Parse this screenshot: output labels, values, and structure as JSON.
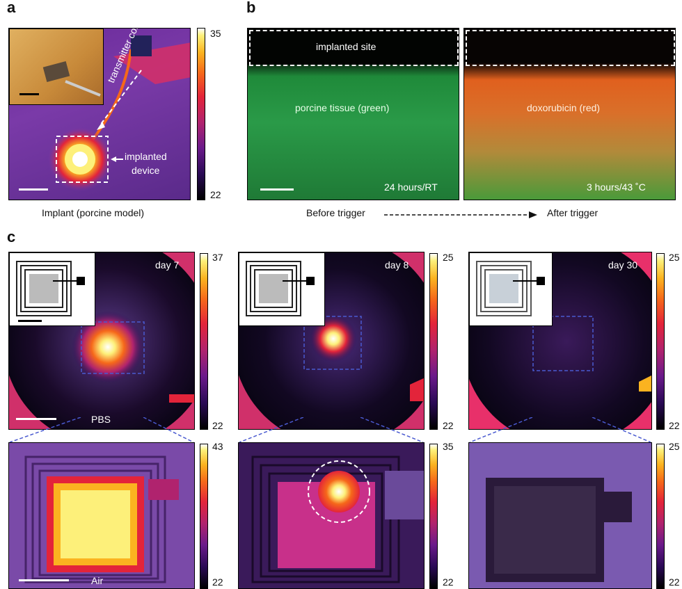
{
  "panel_a": {
    "letter": "a",
    "labels": {
      "transmitter": "transmitter coil",
      "implanted_1": "implanted",
      "implanted_2": "device"
    },
    "caption": "Implant (porcine model)",
    "colorbar": {
      "max": "35",
      "min": "22"
    }
  },
  "panel_b": {
    "letter": "b",
    "left": {
      "site": "implanted site",
      "tissue": "porcine tissue (green)",
      "time": "24 hours/RT"
    },
    "right": {
      "drug": "doxorubicin (red)",
      "time": "3 hours/43 ˚C"
    },
    "before": "Before trigger",
    "after": "After trigger"
  },
  "panel_c": {
    "letter": "c",
    "top": [
      {
        "day": "day 7",
        "max": "37",
        "min": "22"
      },
      {
        "day": "day 8",
        "max": "25",
        "min": "22"
      },
      {
        "day": "day 30",
        "max": "25",
        "min": "22"
      }
    ],
    "bottom": [
      {
        "max": "43",
        "min": "22"
      },
      {
        "max": "35",
        "min": "22"
      },
      {
        "max": "25",
        "min": "22"
      }
    ],
    "pbs": "PBS",
    "air": "Air"
  },
  "colors": {
    "thermal_bg": "#7a3aa0",
    "hot": "#fdf07a",
    "green": "#1f8a3a",
    "orange": "#d9702a"
  }
}
